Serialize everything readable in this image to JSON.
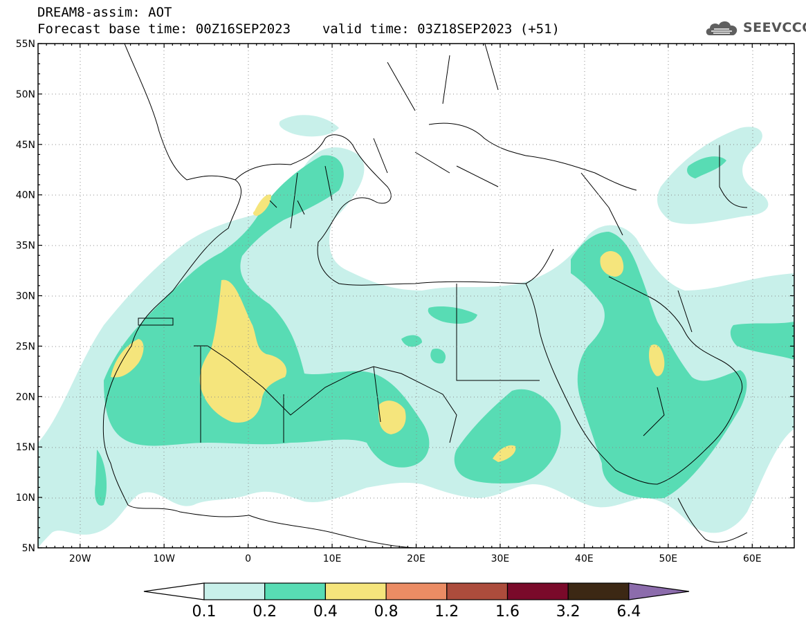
{
  "header": {
    "title": "DREAM8-assim: AOT",
    "base_time_label": "Forecast base time: 00Z16SEP2023",
    "valid_time_label": "valid time: 03Z18SEP2023 (+51)"
  },
  "logo": {
    "text": "SEEVCCC",
    "icon": "cloud-logo-icon"
  },
  "map": {
    "lon_range": [
      -25,
      65
    ],
    "lat_range": [
      5,
      55
    ],
    "lat_ticks": [
      "55N",
      "50N",
      "45N",
      "40N",
      "35N",
      "30N",
      "25N",
      "20N",
      "15N",
      "10N",
      "5N"
    ],
    "lon_ticks": [
      "20W",
      "10W",
      "0",
      "10E",
      "20E",
      "30E",
      "40E",
      "50E",
      "60E"
    ],
    "grid": "dotted"
  },
  "legend": {
    "colors": [
      "#c8f0ea",
      "#58dcb4",
      "#f5e57c",
      "#eb8c64",
      "#ac4c3c",
      "#7a0a2a",
      "#3c2814",
      "#8c6cac"
    ],
    "labels": [
      "0.1",
      "0.2",
      "0.4",
      "0.8",
      "1.2",
      "1.6",
      "3.2",
      "6.4"
    ]
  }
}
